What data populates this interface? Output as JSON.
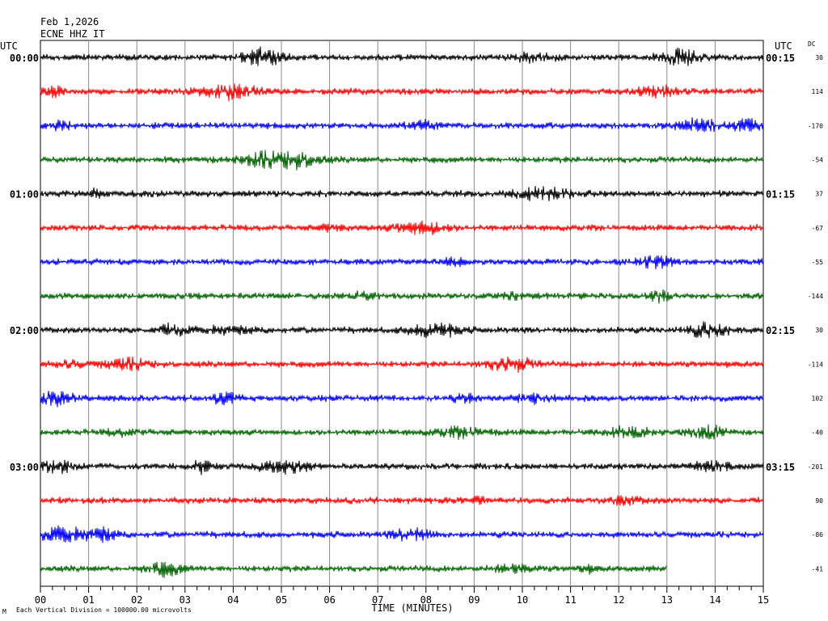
{
  "header": {
    "date": "Feb 1,2026",
    "station": "ECNE HHZ IT"
  },
  "left_tz": "UTC",
  "right_tz": "UTC",
  "dc_header": "DC",
  "footer": {
    "scale_note": "Each Vertical Division = 100000.00 microvolts",
    "corner_mark": "M"
  },
  "chart_data": {
    "type": "line",
    "title": "",
    "xlabel": "TIME (MINUTES)",
    "ylabel": "",
    "xlim": [
      0,
      15
    ],
    "x_ticks": [
      "00",
      "01",
      "02",
      "03",
      "04",
      "05",
      "06",
      "07",
      "08",
      "09",
      "10",
      "11",
      "12",
      "13",
      "14",
      "15"
    ],
    "grid": true,
    "minutes_per_line": 15,
    "trace_colors": [
      "#000000",
      "#ff0000",
      "#0000ff",
      "#006400"
    ],
    "left_hour_labels": [
      "00:00",
      "01:00",
      "02:00",
      "03:00"
    ],
    "right_hour_labels": [
      "00:15",
      "01:15",
      "02:15",
      "03:15"
    ],
    "series": [
      {
        "dc": "30",
        "end_min": 15
      },
      {
        "dc": "114",
        "end_min": 15
      },
      {
        "dc": "-170",
        "end_min": 15
      },
      {
        "dc": "-54",
        "end_min": 15
      },
      {
        "dc": "37",
        "end_min": 15
      },
      {
        "dc": "-67",
        "end_min": 15
      },
      {
        "dc": "-55",
        "end_min": 15
      },
      {
        "dc": "-144",
        "end_min": 15
      },
      {
        "dc": "30",
        "end_min": 15
      },
      {
        "dc": "-114",
        "end_min": 15
      },
      {
        "dc": "102",
        "end_min": 15
      },
      {
        "dc": "-40",
        "end_min": 15
      },
      {
        "dc": "-201",
        "end_min": 15
      },
      {
        "dc": "90",
        "end_min": 15
      },
      {
        "dc": "-86",
        "end_min": 15
      },
      {
        "dc": "-41",
        "end_min": 13
      }
    ]
  }
}
